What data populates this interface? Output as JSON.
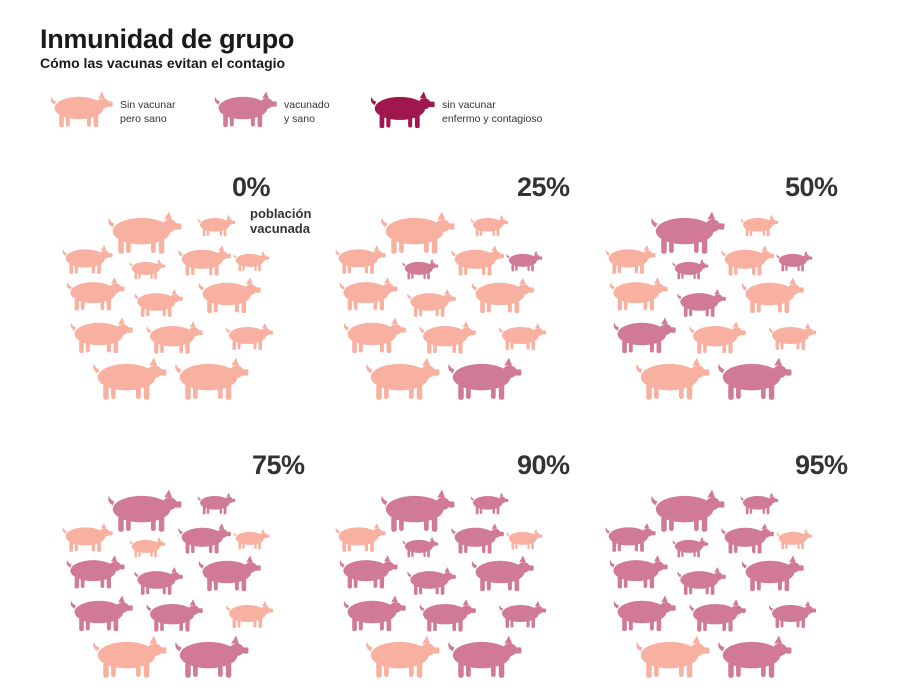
{
  "header": {
    "title": "Inmunidad de grupo",
    "subtitle": "Cómo las vacunas evitan el contagio"
  },
  "legend": [
    {
      "key": "unvaccinated_healthy",
      "line1": "Sin vacunar",
      "line2": "pero sano",
      "color": "#f8b0a0"
    },
    {
      "key": "vaccinated_healthy",
      "line1": "vacunado",
      "line2": "y sano",
      "color": "#d07a95"
    },
    {
      "key": "unvaccinated_sick",
      "line1": "sin vacunar",
      "line2": "enfermo y contagioso",
      "color": "#a0174e"
    }
  ],
  "colors": {
    "unvaccinated_healthy": "#f8b0a0",
    "vaccinated_healthy": "#d07a95",
    "unvaccinated_sick": "#a0174e"
  },
  "panels": [
    {
      "label": "0%",
      "sublabel_line1": "población",
      "sublabel_line2": "vacunada",
      "vaccinated_fraction": 0.0,
      "pigs": [
        "u",
        "u",
        "u",
        "u",
        "u",
        "u",
        "u",
        "u",
        "u",
        "u",
        "u",
        "u",
        "u",
        "u"
      ]
    },
    {
      "label": "25%",
      "sublabel_line1": "",
      "sublabel_line2": "",
      "vaccinated_fraction": 0.25,
      "pigs": [
        "u",
        "u",
        "u",
        "v",
        "u",
        "v",
        "u",
        "u",
        "u",
        "u",
        "u",
        "u",
        "u",
        "v"
      ]
    },
    {
      "label": "50%",
      "sublabel_line1": "",
      "sublabel_line2": "",
      "vaccinated_fraction": 0.5,
      "pigs": [
        "v",
        "u",
        "u",
        "v",
        "u",
        "v",
        "u",
        "v",
        "u",
        "v",
        "u",
        "u",
        "u",
        "v"
      ]
    },
    {
      "label": "75%",
      "sublabel_line1": "",
      "sublabel_line2": "",
      "vaccinated_fraction": 0.75,
      "pigs": [
        "v",
        "v",
        "u",
        "u",
        "v",
        "u",
        "v",
        "v",
        "v",
        "v",
        "v",
        "u",
        "u",
        "v"
      ]
    },
    {
      "label": "90%",
      "sublabel_line1": "",
      "sublabel_line2": "",
      "vaccinated_fraction": 0.9,
      "pigs": [
        "v",
        "v",
        "u",
        "v",
        "v",
        "u",
        "v",
        "v",
        "v",
        "v",
        "v",
        "v",
        "u",
        "v"
      ]
    },
    {
      "label": "95%",
      "sublabel_line1": "",
      "sublabel_line2": "",
      "vaccinated_fraction": 0.95,
      "pigs": [
        "v",
        "v",
        "v",
        "v",
        "v",
        "u",
        "v",
        "v",
        "v",
        "v",
        "v",
        "v",
        "u",
        "v"
      ]
    }
  ]
}
